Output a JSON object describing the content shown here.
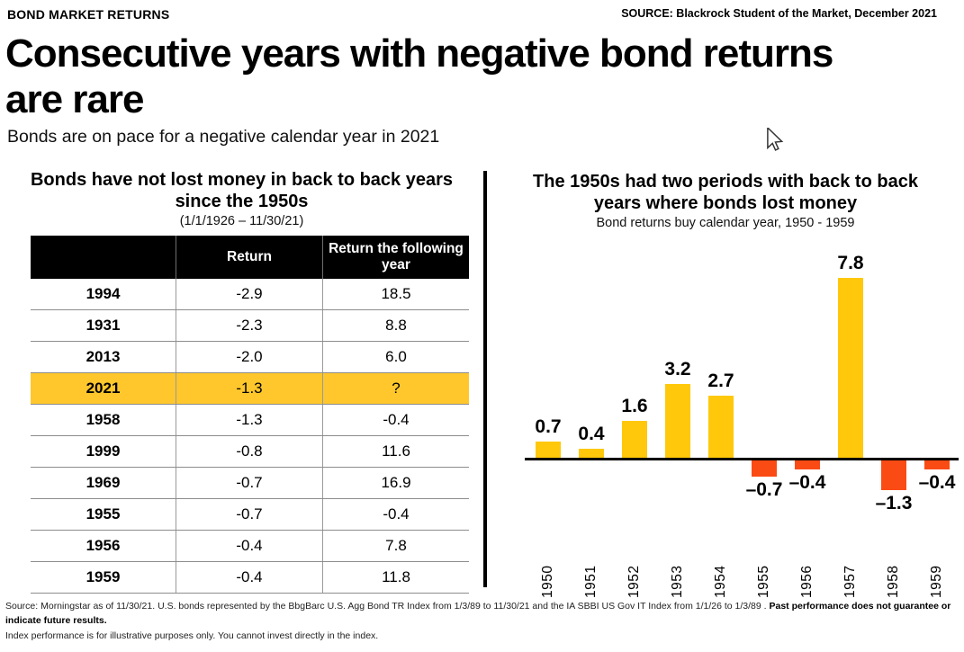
{
  "header": {
    "kicker": "BOND MARKET RETURNS",
    "source": "SOURCE: Blackrock Student of the Market, December 2021",
    "title": "Consecutive years with negative bond returns are rare",
    "subtitle": "Bonds are on pace for a negative calendar year in 2021"
  },
  "left_panel": {
    "title": "Bonds have not lost money in back to back years since the 1950s",
    "subtitle": "(1/1/1926 – 11/30/21)",
    "table": {
      "columns": [
        "",
        "Return",
        "Return the following year"
      ],
      "highlight_color": "#FFC72C",
      "rows": [
        {
          "year": "1994",
          "return": "-2.9",
          "following": "18.5",
          "highlight": false
        },
        {
          "year": "1931",
          "return": "-2.3",
          "following": "8.8",
          "highlight": false
        },
        {
          "year": "2013",
          "return": "-2.0",
          "following": "6.0",
          "highlight": false
        },
        {
          "year": "2021",
          "return": "-1.3",
          "following": "?",
          "highlight": true
        },
        {
          "year": "1958",
          "return": "-1.3",
          "following": "-0.4",
          "highlight": false
        },
        {
          "year": "1999",
          "return": "-0.8",
          "following": "11.6",
          "highlight": false
        },
        {
          "year": "1969",
          "return": "-0.7",
          "following": "16.9",
          "highlight": false
        },
        {
          "year": "1955",
          "return": "-0.7",
          "following": "-0.4",
          "highlight": false
        },
        {
          "year": "1956",
          "return": "-0.4",
          "following": "7.8",
          "highlight": false
        },
        {
          "year": "1959",
          "return": "-0.4",
          "following": "11.8",
          "highlight": false
        }
      ]
    }
  },
  "right_panel": {
    "title": "The 1950s had two periods with back to back years where bonds lost money",
    "subtitle": "Bond returns buy calendar year, 1950 - 1959"
  },
  "chart_data": {
    "type": "bar",
    "title": "The 1950s had two periods with back to back years where bonds lost money",
    "subtitle": "Bond returns buy calendar year, 1950 - 1959",
    "categories": [
      "1950",
      "1951",
      "1952",
      "1953",
      "1954",
      "1955",
      "1956",
      "1957",
      "1958",
      "1959"
    ],
    "values": [
      0.7,
      0.4,
      1.6,
      3.2,
      2.7,
      -0.7,
      -0.4,
      7.8,
      -1.3,
      -0.4
    ],
    "xlabel": "",
    "ylabel": "",
    "ylim": [
      -2,
      8.5
    ],
    "grid": false,
    "legend": false,
    "data_labels": true,
    "positive_color": "#FFC80A",
    "negative_color": "#FB4B14"
  },
  "footer": {
    "line1_normal": "Source: Morningstar as of 11/30/21. U.S. bonds represented by the BbgBarc U.S. Agg Bond TR Index from 1/3/89 to 11/30/21 and the IA SBBI US Gov IT Index from 1/1/26 to 1/3/89 . ",
    "line1_bold": "Past performance does not guarantee or indicate future results.",
    "line2": "Index performance is for illustrative purposes only. You cannot invest directly in the index."
  }
}
